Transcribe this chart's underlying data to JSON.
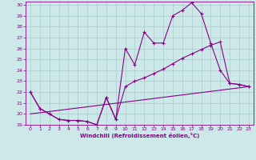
{
  "background_color": "#cce8e8",
  "grid_color": "#aacccc",
  "line_color": "#880088",
  "xlabel": "Windchill (Refroidissement éolien,°C)",
  "xlim": [
    -0.5,
    23.5
  ],
  "ylim": [
    19,
    30.3
  ],
  "yticks": [
    19,
    20,
    21,
    22,
    23,
    24,
    25,
    26,
    27,
    28,
    29,
    30
  ],
  "xticks": [
    0,
    1,
    2,
    3,
    4,
    5,
    6,
    7,
    8,
    9,
    10,
    11,
    12,
    13,
    14,
    15,
    16,
    17,
    18,
    19,
    20,
    21,
    22,
    23
  ],
  "line1_x": [
    0,
    1,
    2,
    3,
    4,
    5,
    6,
    7,
    8,
    9,
    10,
    11,
    12,
    13,
    14,
    15,
    16,
    17,
    18,
    19,
    20,
    21,
    22,
    23
  ],
  "line1_y": [
    22.0,
    20.5,
    20.0,
    19.5,
    19.4,
    19.4,
    19.3,
    19.0,
    21.5,
    19.5,
    26.0,
    24.5,
    27.5,
    26.5,
    26.5,
    29.0,
    29.5,
    30.2,
    29.2,
    26.5,
    24.0,
    22.8,
    22.7,
    22.5
  ],
  "line2_x": [
    0,
    1,
    2,
    3,
    4,
    5,
    6,
    7,
    8,
    9,
    10,
    11,
    12,
    13,
    14,
    15,
    16,
    17,
    18,
    19,
    20,
    21,
    22,
    23
  ],
  "line2_y": [
    22.0,
    20.5,
    20.0,
    19.5,
    19.4,
    19.4,
    19.3,
    19.0,
    21.5,
    19.5,
    22.5,
    23.0,
    23.3,
    23.7,
    24.1,
    24.6,
    25.1,
    25.5,
    25.9,
    26.3,
    26.6,
    22.8,
    22.7,
    22.5
  ],
  "line3_x": [
    0,
    23
  ],
  "line3_y": [
    20.0,
    22.5
  ]
}
